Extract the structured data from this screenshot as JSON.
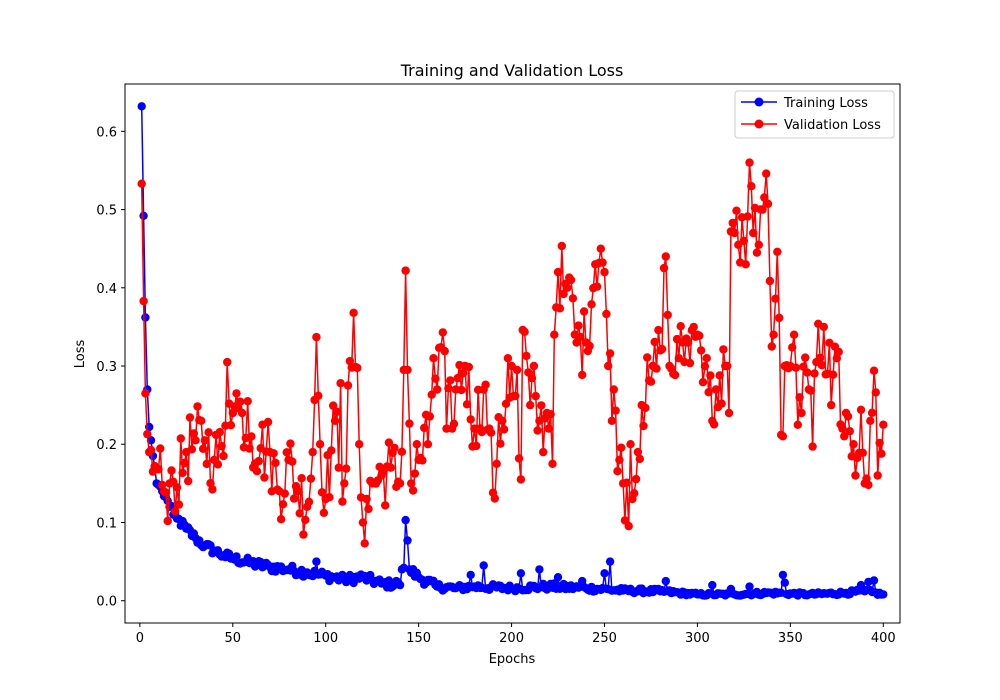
{
  "chart_data": {
    "type": "line",
    "title": "Training and Validation Loss",
    "xlabel": "Epochs",
    "ylabel": "Loss",
    "xlim": [
      -8,
      409
    ],
    "ylim": [
      -0.0285,
      0.6605
    ],
    "xticks": [
      0,
      50,
      100,
      150,
      200,
      250,
      300,
      350,
      400
    ],
    "yticks": [
      0.0,
      0.1,
      0.2,
      0.3,
      0.4,
      0.5,
      0.6
    ],
    "ytick_labels": [
      "0.0",
      "0.1",
      "0.2",
      "0.3",
      "0.4",
      "0.5",
      "0.6"
    ],
    "grid": false,
    "legend": "top-right",
    "marker": "circle",
    "series": [
      {
        "name": "Training Loss",
        "color": "#0000ff",
        "anchors": [
          [
            1,
            0.632
          ],
          [
            2,
            0.492
          ],
          [
            3,
            0.362
          ],
          [
            4,
            0.27
          ],
          [
            5,
            0.222
          ],
          [
            6,
            0.205
          ],
          [
            7,
            0.185
          ],
          [
            8,
            0.172
          ],
          [
            9,
            0.15
          ],
          [
            10,
            0.148
          ],
          [
            12,
            0.14
          ],
          [
            14,
            0.132
          ],
          [
            16,
            0.12
          ],
          [
            18,
            0.11
          ],
          [
            20,
            0.105
          ],
          [
            25,
            0.092
          ],
          [
            30,
            0.08
          ],
          [
            35,
            0.07
          ],
          [
            40,
            0.064
          ],
          [
            45,
            0.058
          ],
          [
            50,
            0.054
          ],
          [
            60,
            0.048
          ],
          [
            70,
            0.043
          ],
          [
            80,
            0.04
          ],
          [
            90,
            0.036
          ],
          [
            100,
            0.032
          ],
          [
            110,
            0.027
          ],
          [
            120,
            0.03
          ],
          [
            130,
            0.022
          ],
          [
            140,
            0.02
          ],
          [
            141,
            0.04
          ],
          [
            142,
            0.042
          ],
          [
            143,
            0.103
          ],
          [
            144,
            0.077
          ],
          [
            145,
            0.04
          ],
          [
            150,
            0.03
          ],
          [
            160,
            0.018
          ],
          [
            170,
            0.016
          ],
          [
            180,
            0.018
          ],
          [
            200,
            0.016
          ],
          [
            220,
            0.018
          ],
          [
            240,
            0.016
          ],
          [
            260,
            0.013
          ],
          [
            280,
            0.012
          ],
          [
            300,
            0.008
          ],
          [
            320,
            0.008
          ],
          [
            340,
            0.01
          ],
          [
            360,
            0.008
          ],
          [
            380,
            0.01
          ],
          [
            390,
            0.012
          ],
          [
            400,
            0.008
          ]
        ],
        "spikes": [
          [
            95,
            0.05
          ],
          [
            120,
            0.04
          ],
          [
            138,
            0.025
          ],
          [
            178,
            0.033
          ],
          [
            185,
            0.045
          ],
          [
            205,
            0.035
          ],
          [
            215,
            0.04
          ],
          [
            225,
            0.03
          ],
          [
            238,
            0.025
          ],
          [
            250,
            0.035
          ],
          [
            253,
            0.05
          ],
          [
            283,
            0.025
          ],
          [
            308,
            0.02
          ],
          [
            318,
            0.015
          ],
          [
            328,
            0.018
          ],
          [
            346,
            0.033
          ],
          [
            347,
            0.023
          ],
          [
            388,
            0.02
          ],
          [
            392,
            0.024
          ],
          [
            395,
            0.026
          ]
        ]
      },
      {
        "name": "Validation Loss",
        "color": "#ff0000",
        "anchors": [
          [
            1,
            0.533
          ],
          [
            2,
            0.383
          ],
          [
            3,
            0.265
          ],
          [
            4,
            0.213
          ],
          [
            5,
            0.19
          ],
          [
            7,
            0.165
          ],
          [
            8,
            0.172
          ],
          [
            10,
            0.168
          ],
          [
            12,
            0.148
          ],
          [
            14,
            0.138
          ],
          [
            16,
            0.15
          ],
          [
            18,
            0.152
          ],
          [
            20,
            0.145
          ],
          [
            25,
            0.19
          ],
          [
            30,
            0.205
          ],
          [
            35,
            0.205
          ],
          [
            40,
            0.18
          ],
          [
            45,
            0.185
          ],
          [
            47,
            0.305
          ],
          [
            50,
            0.24
          ],
          [
            55,
            0.24
          ],
          [
            60,
            0.21
          ],
          [
            65,
            0.195
          ],
          [
            70,
            0.19
          ],
          [
            75,
            0.14
          ],
          [
            80,
            0.18
          ],
          [
            85,
            0.14
          ],
          [
            90,
            0.12
          ],
          [
            93,
            0.19
          ],
          [
            95,
            0.337
          ],
          [
            97,
            0.2
          ],
          [
            100,
            0.13
          ],
          [
            105,
            0.23
          ],
          [
            110,
            0.15
          ],
          [
            115,
            0.368
          ],
          [
            118,
            0.2
          ],
          [
            120,
            0.1
          ],
          [
            125,
            0.15
          ],
          [
            130,
            0.16
          ],
          [
            135,
            0.17
          ],
          [
            140,
            0.15
          ],
          [
            142,
            0.295
          ],
          [
            143,
            0.422
          ],
          [
            144,
            0.295
          ],
          [
            146,
            0.15
          ],
          [
            150,
            0.18
          ],
          [
            155,
            0.2
          ],
          [
            158,
            0.31
          ],
          [
            160,
            0.27
          ],
          [
            163,
            0.343
          ],
          [
            165,
            0.22
          ],
          [
            170,
            0.27
          ],
          [
            175,
            0.3
          ],
          [
            180,
            0.22
          ],
          [
            185,
            0.27
          ],
          [
            188,
            0.22
          ],
          [
            190,
            0.138
          ],
          [
            195,
            0.23
          ],
          [
            200,
            0.3
          ],
          [
            205,
            0.155
          ],
          [
            206,
            0.346
          ],
          [
            210,
            0.25
          ],
          [
            215,
            0.23
          ],
          [
            220,
            0.22
          ],
          [
            223,
            0.34
          ],
          [
            225,
            0.42
          ],
          [
            230,
            0.4
          ],
          [
            235,
            0.33
          ],
          [
            240,
            0.33
          ],
          [
            245,
            0.43
          ],
          [
            248,
            0.45
          ],
          [
            250,
            0.42
          ],
          [
            252,
            0.3
          ],
          [
            255,
            0.27
          ],
          [
            258,
            0.18
          ],
          [
            260,
            0.15
          ],
          [
            265,
            0.13
          ],
          [
            268,
            0.19
          ],
          [
            270,
            0.25
          ],
          [
            275,
            0.28
          ],
          [
            280,
            0.32
          ],
          [
            283,
            0.44
          ],
          [
            285,
            0.3
          ],
          [
            290,
            0.31
          ],
          [
            295,
            0.33
          ],
          [
            300,
            0.34
          ],
          [
            305,
            0.31
          ],
          [
            308,
            0.23
          ],
          [
            310,
            0.27
          ],
          [
            315,
            0.3
          ],
          [
            317,
            0.24
          ],
          [
            318,
            0.472
          ],
          [
            320,
            0.47
          ],
          [
            325,
            0.46
          ],
          [
            328,
            0.56
          ],
          [
            330,
            0.47
          ],
          [
            335,
            0.5
          ],
          [
            337,
            0.546
          ],
          [
            340,
            0.325
          ],
          [
            343,
            0.446
          ],
          [
            345,
            0.212
          ],
          [
            350,
            0.3
          ],
          [
            355,
            0.26
          ],
          [
            360,
            0.27
          ],
          [
            365,
            0.354
          ],
          [
            370,
            0.29
          ],
          [
            375,
            0.31
          ],
          [
            378,
            0.22
          ],
          [
            380,
            0.24
          ],
          [
            385,
            0.16
          ],
          [
            388,
            0.244
          ],
          [
            390,
            0.15
          ],
          [
            393,
            0.23
          ],
          [
            395,
            0.294
          ],
          [
            397,
            0.16
          ],
          [
            400,
            0.225
          ]
        ],
        "noise_amp": 0.045,
        "spikes": [
          [
            25,
            0.214
          ],
          [
            30,
            0.248
          ],
          [
            40,
            0.2
          ],
          [
            50,
            0.137
          ],
          [
            52,
            0.265
          ],
          [
            58,
            0.255
          ],
          [
            65,
            0.24
          ],
          [
            70,
            0.25
          ],
          [
            75,
            0.126
          ],
          [
            80,
            0.22
          ],
          [
            85,
            0.175
          ],
          [
            90,
            0.107
          ],
          [
            100,
            0.11
          ],
          [
            105,
            0.3
          ],
          [
            108,
            0.278
          ],
          [
            110,
            0.26
          ],
          [
            114,
            0.298
          ],
          [
            122,
            0.13
          ],
          [
            125,
            0.172
          ],
          [
            130,
            0.11
          ],
          [
            160,
            0.232
          ],
          [
            165,
            0.336
          ],
          [
            168,
            0.22
          ],
          [
            175,
            0.325
          ],
          [
            180,
            0.19
          ],
          [
            185,
            0.31
          ],
          [
            192,
            0.175
          ],
          [
            198,
            0.31
          ],
          [
            203,
            0.295
          ],
          [
            212,
            0.3
          ],
          [
            215,
            0.17
          ],
          [
            219,
            0.24
          ],
          [
            222,
            0.175
          ],
          [
            228,
            0.392
          ],
          [
            232,
            0.41
          ],
          [
            240,
            0.31
          ],
          [
            245,
            0.418
          ],
          [
            250,
            0.385
          ],
          [
            252,
            0.364
          ],
          [
            254,
            0.23
          ],
          [
            260,
            0.185
          ],
          [
            264,
            0.2
          ],
          [
            270,
            0.222
          ],
          [
            276,
            0.3
          ],
          [
            280,
            0.35
          ],
          [
            287,
            0.29
          ],
          [
            292,
            0.33
          ],
          [
            298,
            0.35
          ],
          [
            302,
            0.32
          ],
          [
            305,
            0.34
          ],
          [
            310,
            0.227
          ],
          [
            313,
            0.252
          ],
          [
            322,
            0.455
          ],
          [
            326,
            0.43
          ],
          [
            332,
            0.445
          ],
          [
            340,
            0.36
          ],
          [
            342,
            0.386
          ],
          [
            347,
            0.3
          ],
          [
            352,
            0.34
          ],
          [
            356,
            0.24
          ],
          [
            362,
            0.197
          ],
          [
            364,
            0.305
          ],
          [
            368,
            0.35
          ],
          [
            372,
            0.25
          ],
          [
            376,
            0.318
          ],
          [
            380,
            0.21
          ],
          [
            384,
            0.2
          ],
          [
            387,
            0.189
          ],
          [
            392,
            0.148
          ]
        ]
      }
    ]
  }
}
